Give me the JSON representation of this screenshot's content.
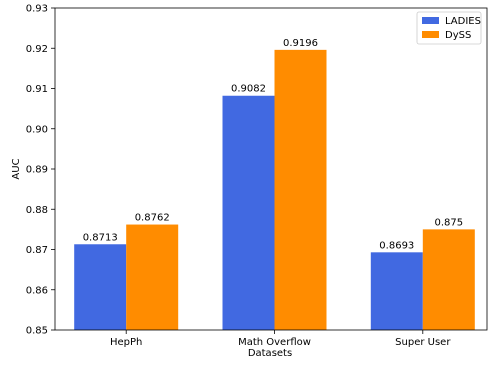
{
  "chart_data": {
    "type": "bar",
    "title": "",
    "xlabel": "Datasets",
    "ylabel": "AUC",
    "categories": [
      "HepPh",
      "Math Overflow",
      "Super User"
    ],
    "series": [
      {
        "name": "LADIES",
        "color": "#4169e1",
        "values": [
          0.8713,
          0.9082,
          0.8693
        ],
        "labels": [
          "0.8713",
          "0.9082",
          "0.8693"
        ]
      },
      {
        "name": "DySS",
        "color": "#ff8c00",
        "values": [
          0.8762,
          0.9196,
          0.875
        ],
        "labels": [
          "0.8762",
          "0.9196",
          "0.875"
        ]
      }
    ],
    "ylim": [
      0.85,
      0.93
    ],
    "yticks": [
      "0.85",
      "0.86",
      "0.87",
      "0.88",
      "0.89",
      "0.90",
      "0.91",
      "0.92",
      "0.93"
    ],
    "grid": false,
    "legend_position": "top-right"
  }
}
